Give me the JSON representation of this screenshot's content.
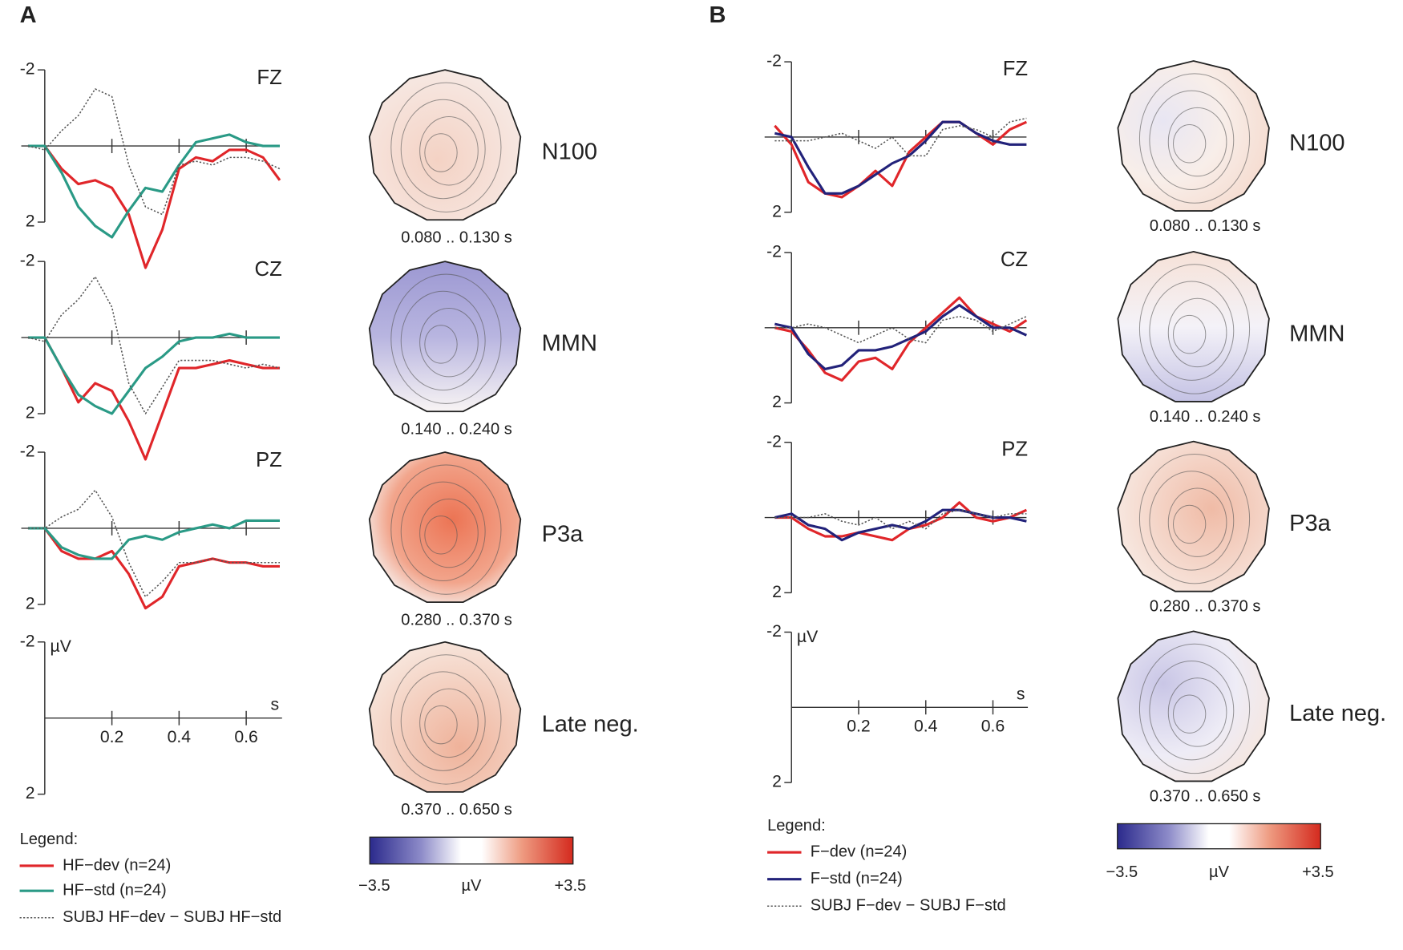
{
  "panels": [
    {
      "label": "A",
      "scale": {
        "ylim": [
          -2,
          2
        ],
        "yticks": [
          -2,
          2
        ],
        "xticks": [
          0.2,
          0.4,
          0.6
        ],
        "y_unit": "µV",
        "x_unit": "s"
      },
      "topomaps": [
        {
          "label": "N100",
          "window": "0.080 .. 0.130 s"
        },
        {
          "label": "MMN",
          "window": "0.140 .. 0.240 s"
        },
        {
          "label": "P3a",
          "window": "0.280 .. 0.370 s"
        },
        {
          "label": "Late neg.",
          "window": "0.370 .. 0.650 s"
        }
      ],
      "legend": {
        "title": "Legend:"
      },
      "colorbar": {
        "min": "−3.5",
        "unit": "µV",
        "max": "+3.5"
      }
    },
    {
      "label": "B",
      "scale": {
        "ylim": [
          -2,
          2
        ],
        "yticks": [
          -2,
          2
        ],
        "xticks": [
          0.2,
          0.4,
          0.6
        ],
        "y_unit": "µV",
        "x_unit": "s"
      },
      "topomaps": [
        {
          "label": "N100",
          "window": "0.080 .. 0.130 s"
        },
        {
          "label": "MMN",
          "window": "0.140 .. 0.240 s"
        },
        {
          "label": "P3a",
          "window": "0.280 .. 0.370 s"
        },
        {
          "label": "Late neg.",
          "window": "0.370 .. 0.650 s"
        }
      ],
      "legend": {
        "title": "Legend:"
      },
      "colorbar": {
        "min": "−3.5",
        "unit": "µV",
        "max": "+3.5"
      }
    }
  ],
  "chart_data": [
    {
      "type": "line",
      "title": "FZ",
      "inverted_y": true,
      "xlim": [
        -0.07,
        0.7
      ],
      "ylim": [
        -2,
        2
      ],
      "yticks": [
        -2,
        2
      ],
      "xticks": [
        0.2,
        0.4,
        0.6
      ],
      "x": [
        -0.05,
        0,
        0.05,
        0.1,
        0.15,
        0.2,
        0.25,
        0.3,
        0.35,
        0.4,
        0.45,
        0.5,
        0.55,
        0.6,
        0.65,
        0.7
      ],
      "series": [
        {
          "name": "HF−dev (n=24)",
          "color": "#e0262a",
          "style": "solid",
          "values": [
            0,
            0,
            0.6,
            1.0,
            0.9,
            1.1,
            1.8,
            3.2,
            2.2,
            0.6,
            0.3,
            0.4,
            0.1,
            0.1,
            0.3,
            0.9
          ]
        },
        {
          "name": "HF−std (n=24)",
          "color": "#2a9a86",
          "style": "solid",
          "values": [
            0,
            0,
            0.7,
            1.6,
            2.1,
            2.4,
            1.7,
            1.1,
            1.2,
            0.5,
            -0.1,
            -0.2,
            -0.3,
            -0.1,
            0,
            0
          ]
        },
        {
          "name": "SUBJ HF−dev − SUBJ HF−std",
          "color": "#555555",
          "style": "dotted",
          "values": [
            0,
            0.1,
            -0.4,
            -0.8,
            -1.5,
            -1.3,
            0.5,
            1.6,
            1.8,
            0.5,
            0.4,
            0.5,
            0.3,
            0.3,
            0.4,
            0.6
          ]
        }
      ]
    },
    {
      "type": "line",
      "title": "CZ",
      "inverted_y": true,
      "xlim": [
        -0.07,
        0.7
      ],
      "ylim": [
        -2,
        2
      ],
      "yticks": [
        -2,
        2
      ],
      "xticks": [
        0.2,
        0.4,
        0.6
      ],
      "x": [
        -0.05,
        0,
        0.05,
        0.1,
        0.15,
        0.2,
        0.25,
        0.3,
        0.35,
        0.4,
        0.45,
        0.5,
        0.55,
        0.6,
        0.65,
        0.7
      ],
      "series": [
        {
          "name": "HF−dev (n=24)",
          "color": "#e0262a",
          "style": "solid",
          "values": [
            0,
            0,
            0.8,
            1.7,
            1.2,
            1.4,
            2.2,
            3.2,
            2.0,
            0.8,
            0.8,
            0.7,
            0.6,
            0.7,
            0.8,
            0.8
          ]
        },
        {
          "name": "HF−std (n=24)",
          "color": "#2a9a86",
          "style": "solid",
          "values": [
            0,
            0,
            0.8,
            1.5,
            1.8,
            2.0,
            1.4,
            0.8,
            0.5,
            0.1,
            0,
            0,
            -0.1,
            0,
            0,
            0
          ]
        },
        {
          "name": "SUBJ HF−dev − SUBJ HF−std",
          "color": "#555555",
          "style": "dotted",
          "values": [
            0,
            0.1,
            -0.6,
            -1.0,
            -1.6,
            -0.8,
            1.2,
            2.0,
            1.3,
            0.6,
            0.6,
            0.6,
            0.7,
            0.8,
            0.7,
            0.8
          ]
        }
      ]
    },
    {
      "type": "line",
      "title": "PZ",
      "inverted_y": true,
      "xlim": [
        -0.07,
        0.7
      ],
      "ylim": [
        -2,
        2
      ],
      "yticks": [
        -2,
        2
      ],
      "xticks": [
        0.2,
        0.4,
        0.6
      ],
      "x": [
        -0.05,
        0,
        0.05,
        0.1,
        0.15,
        0.2,
        0.25,
        0.3,
        0.35,
        0.4,
        0.45,
        0.5,
        0.55,
        0.6,
        0.65,
        0.7
      ],
      "series": [
        {
          "name": "HF−dev (n=24)",
          "color": "#e0262a",
          "style": "solid",
          "values": [
            0,
            0,
            0.6,
            0.8,
            0.8,
            0.6,
            1.2,
            2.1,
            1.8,
            1.0,
            0.9,
            0.8,
            0.9,
            0.9,
            1.0,
            1.0
          ]
        },
        {
          "name": "HF−std (n=24)",
          "color": "#2a9a86",
          "style": "solid",
          "values": [
            0,
            0,
            0.5,
            0.7,
            0.8,
            0.8,
            0.3,
            0.2,
            0.3,
            0.1,
            0,
            -0.1,
            0,
            -0.2,
            -0.2,
            -0.2
          ]
        },
        {
          "name": "SUBJ HF−dev − SUBJ HF−std",
          "color": "#555555",
          "style": "dotted",
          "values": [
            0,
            0,
            -0.3,
            -0.5,
            -1.0,
            -0.3,
            0.9,
            1.8,
            1.4,
            0.9,
            0.9,
            0.8,
            0.9,
            0.9,
            0.9,
            0.9
          ]
        }
      ]
    },
    {
      "type": "line",
      "title": "FZ",
      "inverted_y": true,
      "xlim": [
        -0.08,
        0.7
      ],
      "ylim": [
        -2,
        2
      ],
      "yticks": [
        -2,
        2
      ],
      "xticks": [
        0.2,
        0.4,
        0.6
      ],
      "x": [
        -0.05,
        0,
        0.05,
        0.1,
        0.15,
        0.2,
        0.25,
        0.3,
        0.35,
        0.4,
        0.45,
        0.5,
        0.55,
        0.6,
        0.65,
        0.7
      ],
      "series": [
        {
          "name": "F−dev (n=24)",
          "color": "#e0262a",
          "style": "solid",
          "values": [
            -0.3,
            0.2,
            1.2,
            1.5,
            1.6,
            1.3,
            0.9,
            1.3,
            0.4,
            0,
            -0.4,
            -0.4,
            -0.1,
            0.2,
            -0.2,
            -0.4
          ]
        },
        {
          "name": "F−std (n=24)",
          "color": "#22227a",
          "style": "solid",
          "values": [
            -0.1,
            0,
            0.8,
            1.5,
            1.5,
            1.3,
            1.0,
            0.7,
            0.5,
            0.1,
            -0.4,
            -0.4,
            -0.1,
            0.1,
            0.2,
            0.2
          ]
        },
        {
          "name": "SUBJ F−dev − SUBJ F−std",
          "color": "#555555",
          "style": "dotted",
          "values": [
            0.1,
            0.1,
            0.1,
            0,
            -0.1,
            0.1,
            0.3,
            0,
            0.5,
            0.5,
            -0.2,
            -0.3,
            -0.2,
            0,
            -0.4,
            -0.5
          ]
        }
      ]
    },
    {
      "type": "line",
      "title": "CZ",
      "inverted_y": true,
      "xlim": [
        -0.08,
        0.7
      ],
      "ylim": [
        -2,
        2
      ],
      "yticks": [
        -2,
        2
      ],
      "xticks": [
        0.2,
        0.4,
        0.6
      ],
      "x": [
        -0.05,
        0,
        0.05,
        0.1,
        0.15,
        0.2,
        0.25,
        0.3,
        0.35,
        0.4,
        0.45,
        0.5,
        0.55,
        0.6,
        0.65,
        0.7
      ],
      "series": [
        {
          "name": "F−dev (n=24)",
          "color": "#e0262a",
          "style": "solid",
          "values": [
            0,
            0.1,
            0.6,
            1.2,
            1.4,
            0.9,
            0.8,
            1.1,
            0.4,
            0,
            -0.4,
            -0.8,
            -0.3,
            -0.1,
            0.1,
            -0.2
          ]
        },
        {
          "name": "F−std (n=24)",
          "color": "#22227a",
          "style": "solid",
          "values": [
            -0.1,
            0,
            0.7,
            1.1,
            1.0,
            0.6,
            0.6,
            0.5,
            0.3,
            0.1,
            -0.3,
            -0.6,
            -0.3,
            0,
            0,
            0.2
          ]
        },
        {
          "name": "SUBJ F−dev − SUBJ F−std",
          "color": "#555555",
          "style": "dotted",
          "values": [
            0,
            0,
            -0.1,
            0,
            0.2,
            0.4,
            0.2,
            0,
            0.3,
            0.4,
            -0.2,
            -0.3,
            -0.2,
            0.1,
            -0.1,
            -0.3
          ]
        }
      ]
    },
    {
      "type": "line",
      "title": "PZ",
      "inverted_y": true,
      "xlim": [
        -0.08,
        0.7
      ],
      "ylim": [
        -2,
        2
      ],
      "yticks": [
        -2,
        2
      ],
      "xticks": [
        0.2,
        0.4,
        0.6
      ],
      "x": [
        -0.05,
        0,
        0.05,
        0.1,
        0.15,
        0.2,
        0.25,
        0.3,
        0.35,
        0.4,
        0.45,
        0.5,
        0.55,
        0.6,
        0.65,
        0.7
      ],
      "series": [
        {
          "name": "F−dev (n=24)",
          "color": "#e0262a",
          "style": "solid",
          "values": [
            0,
            0,
            0.3,
            0.5,
            0.5,
            0.4,
            0.5,
            0.6,
            0.3,
            0.2,
            0,
            -0.4,
            0,
            0.1,
            0,
            -0.2
          ]
        },
        {
          "name": "F−std (n=24)",
          "color": "#22227a",
          "style": "solid",
          "values": [
            0,
            -0.1,
            0.2,
            0.3,
            0.6,
            0.4,
            0.3,
            0.2,
            0.3,
            0.1,
            -0.2,
            -0.2,
            -0.1,
            0,
            0,
            0.1
          ]
        },
        {
          "name": "SUBJ F−dev − SUBJ F−std",
          "color": "#555555",
          "style": "dotted",
          "values": [
            0,
            0,
            0,
            -0.1,
            0.1,
            0.2,
            0,
            0.3,
            0.1,
            0.3,
            -0.1,
            -0.2,
            -0.1,
            0,
            -0.1,
            -0.1
          ]
        }
      ]
    }
  ]
}
